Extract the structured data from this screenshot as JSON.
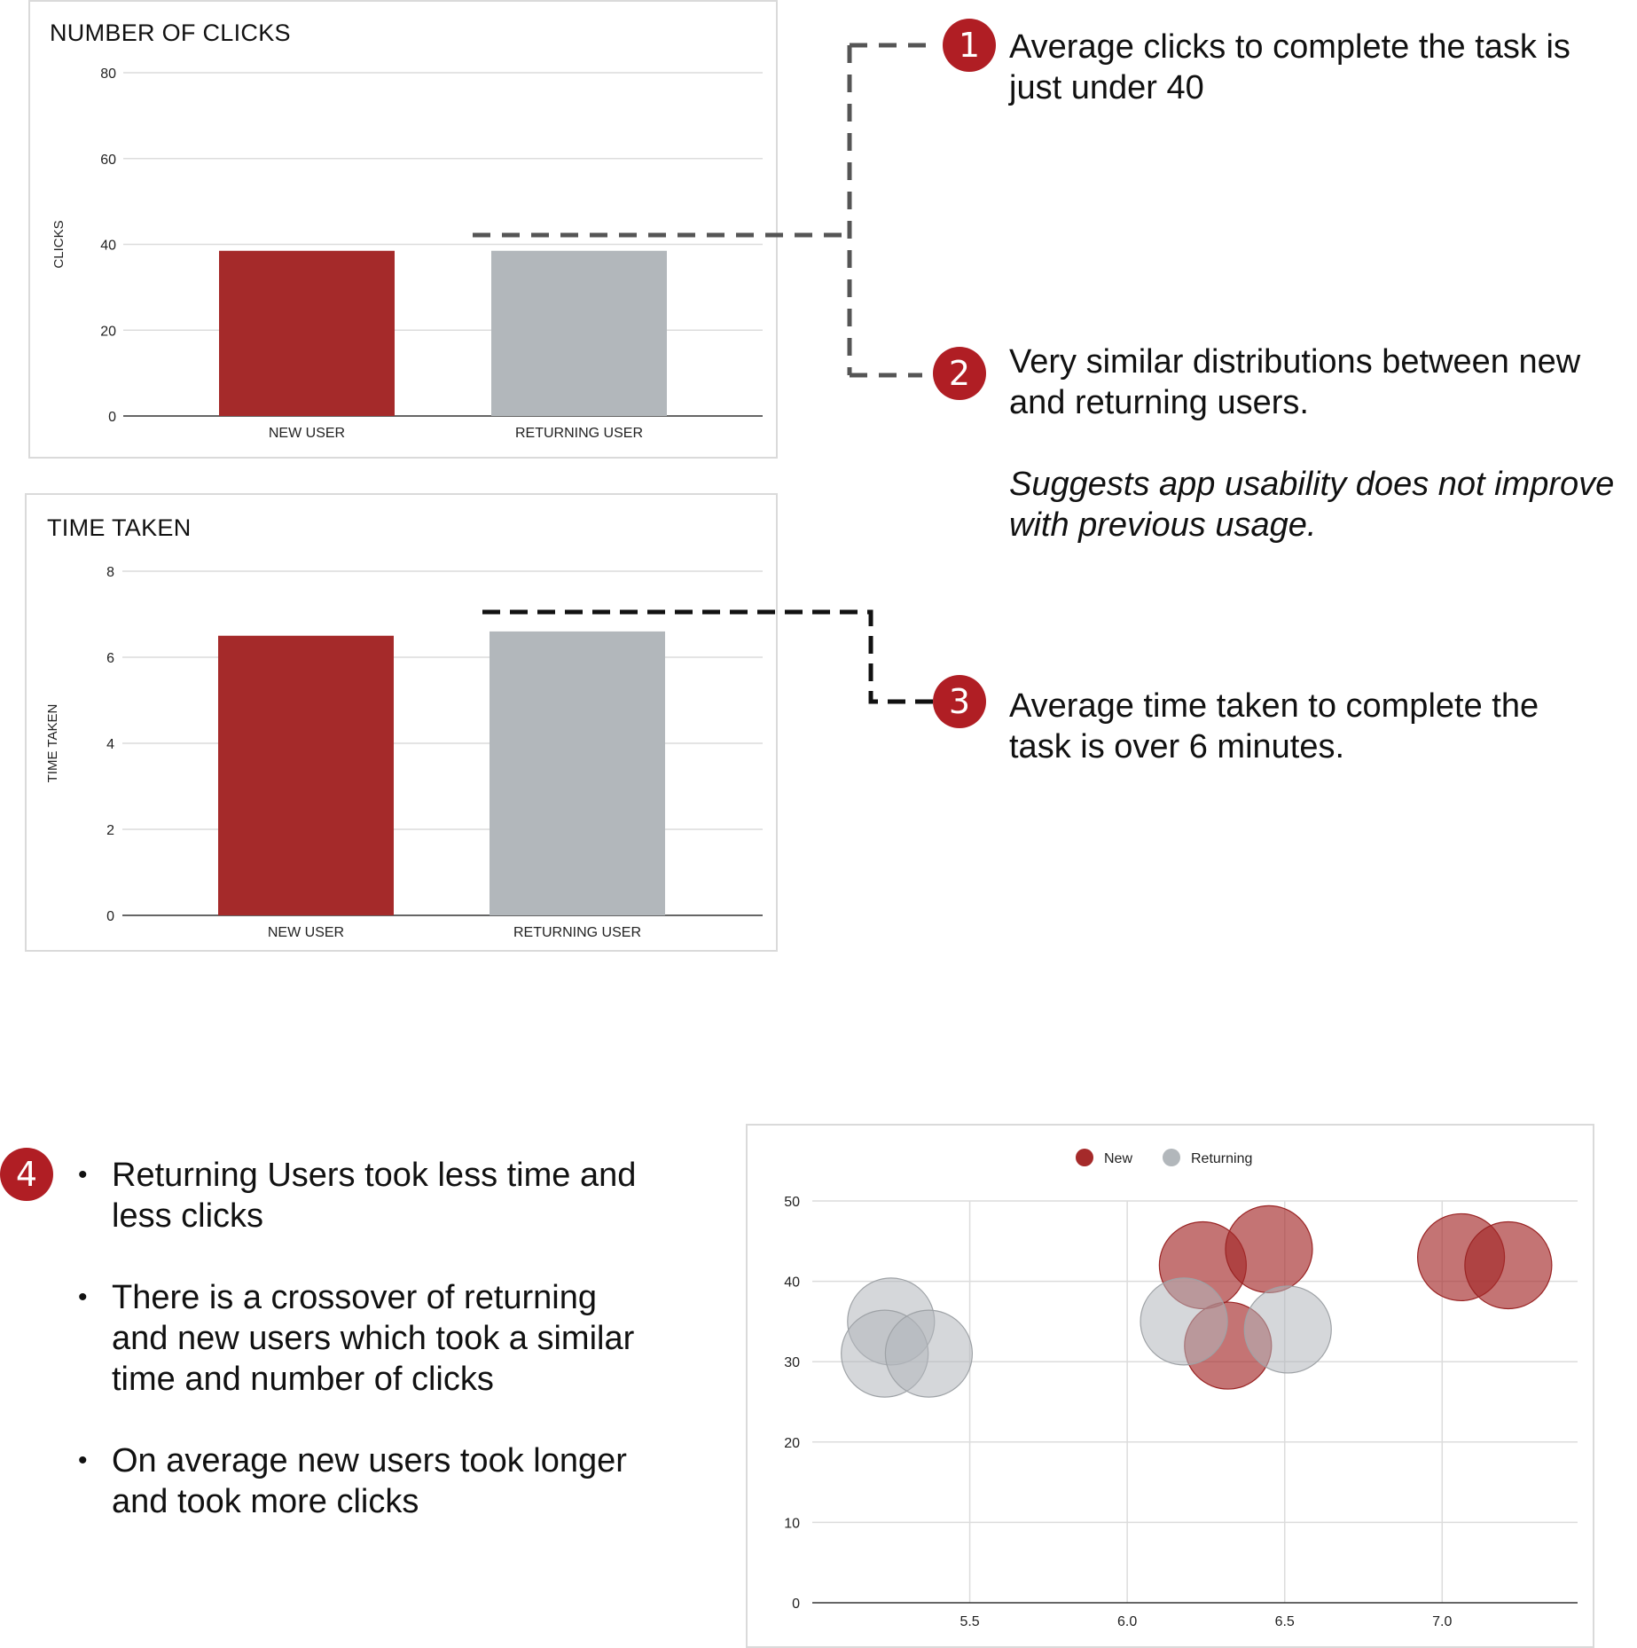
{
  "colors": {
    "new": "#a52a2a",
    "returning": "#b2b7bb",
    "badge": "#b01e24",
    "grid": "#dcdcdc"
  },
  "chart_data": [
    {
      "type": "bar",
      "title": "NUMBER OF CLICKS",
      "ylabel": "CLICKS",
      "xlabel": "",
      "categories": [
        "NEW USER",
        "RETURNING USER"
      ],
      "values": [
        38.5,
        38.5
      ],
      "ylim": [
        0,
        80
      ],
      "yticks": [
        "0",
        "20",
        "40",
        "60",
        "80"
      ],
      "grid": true
    },
    {
      "type": "bar",
      "title": "TIME TAKEN",
      "ylabel": "TIME TAKEN",
      "xlabel": "",
      "categories": [
        "NEW USER",
        "RETURNING USER"
      ],
      "values": [
        6.5,
        6.6
      ],
      "ylim": [
        0,
        8
      ],
      "yticks": [
        "0",
        "2",
        "4",
        "6",
        "8"
      ],
      "grid": true
    },
    {
      "type": "bubble",
      "title": "",
      "xlabel": "",
      "ylabel": "",
      "legend_position": "top",
      "xlim": [
        5.0,
        7.43
      ],
      "ylim": [
        0,
        50
      ],
      "xticks": [
        "5.5",
        "6.0",
        "6.5",
        "7.0"
      ],
      "yticks": [
        "0",
        "10",
        "20",
        "30",
        "40",
        "50"
      ],
      "grid": true,
      "series": [
        {
          "name": "New",
          "points": [
            [
              6.24,
              42
            ],
            [
              6.45,
              44
            ],
            [
              6.32,
              32
            ],
            [
              7.06,
              43
            ],
            [
              7.21,
              42
            ]
          ]
        },
        {
          "name": "Returning",
          "points": [
            [
              5.25,
              35
            ],
            [
              5.23,
              31
            ],
            [
              5.37,
              31
            ],
            [
              6.18,
              35
            ],
            [
              6.51,
              34
            ]
          ]
        }
      ]
    }
  ],
  "callouts": [
    {
      "number": "1",
      "lines": [
        "Average clicks to complete the task is",
        "just under 40"
      ]
    },
    {
      "number": "2",
      "lines": [
        "Very similar distributions between new",
        "and returning users."
      ],
      "italic_lines": [
        "Suggests app usability does not improve",
        "with previous usage."
      ]
    },
    {
      "number": "3",
      "lines": [
        "Average time taken to complete the",
        "task is over 6 minutes."
      ]
    },
    {
      "number": "4"
    }
  ],
  "bullets": [
    {
      "lines": [
        "Returning Users took less time and",
        "less clicks"
      ]
    },
    {
      "lines": [
        "There is a crossover of returning",
        "and new users which took a similar",
        "time and number of clicks"
      ]
    },
    {
      "lines": [
        "On average new users took longer",
        "and took more clicks"
      ]
    }
  ]
}
